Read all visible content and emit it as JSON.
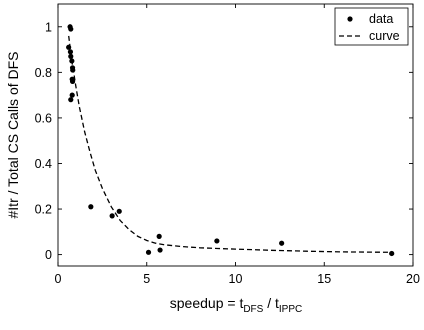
{
  "chart_data": {
    "type": "scatter",
    "xlabel": {
      "main": "speedup = t",
      "sub1": "DFS",
      "mid": " / t",
      "sub2": "IPPC"
    },
    "ylabel": "#Itr / Total CS Calls of DFS",
    "xlim": [
      0,
      20
    ],
    "ylim": [
      -0.05,
      1.1
    ],
    "xticks": [
      0,
      5,
      10,
      15,
      20
    ],
    "yticks": [
      0,
      0.2,
      0.4,
      0.6,
      0.8,
      1
    ],
    "grid": false,
    "legend_position": "top-right",
    "series": [
      {
        "name": "data",
        "style": "dots",
        "color": "#000000",
        "points": [
          [
            0.68,
            1.0
          ],
          [
            0.72,
            0.99
          ],
          [
            0.6,
            0.91
          ],
          [
            0.7,
            0.89
          ],
          [
            0.72,
            0.87
          ],
          [
            0.78,
            0.85
          ],
          [
            0.82,
            0.82
          ],
          [
            0.83,
            0.81
          ],
          [
            0.8,
            0.77
          ],
          [
            0.82,
            0.76
          ],
          [
            0.8,
            0.7
          ],
          [
            0.72,
            0.68
          ],
          [
            1.85,
            0.21
          ],
          [
            3.05,
            0.17
          ],
          [
            3.45,
            0.19
          ],
          [
            5.1,
            0.01
          ],
          [
            5.7,
            0.08
          ],
          [
            5.75,
            0.02
          ],
          [
            8.95,
            0.06
          ],
          [
            12.6,
            0.05
          ],
          [
            18.8,
            0.005
          ]
        ]
      },
      {
        "name": "curve",
        "style": "dashed",
        "color": "#000000",
        "points": [
          [
            0.6,
            0.96
          ],
          [
            0.7,
            0.9
          ],
          [
            0.8,
            0.84
          ],
          [
            1.0,
            0.74
          ],
          [
            1.2,
            0.65
          ],
          [
            1.5,
            0.54
          ],
          [
            1.8,
            0.45
          ],
          [
            2.1,
            0.37
          ],
          [
            2.5,
            0.29
          ],
          [
            3.0,
            0.21
          ],
          [
            3.5,
            0.15
          ],
          [
            4.0,
            0.11
          ],
          [
            4.5,
            0.08
          ],
          [
            5.0,
            0.062
          ],
          [
            5.5,
            0.05
          ],
          [
            6.0,
            0.043
          ],
          [
            7.0,
            0.035
          ],
          [
            8.0,
            0.03
          ],
          [
            9.0,
            0.027
          ],
          [
            10.0,
            0.024
          ],
          [
            12.0,
            0.019
          ],
          [
            14.0,
            0.015
          ],
          [
            16.0,
            0.012
          ],
          [
            18.8,
            0.01
          ]
        ]
      }
    ]
  }
}
